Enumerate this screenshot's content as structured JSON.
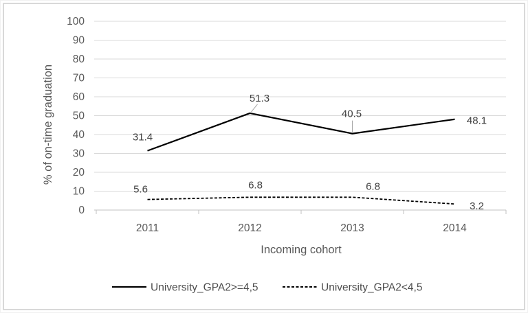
{
  "chart_data": {
    "type": "line",
    "title": "",
    "xlabel": "Incoming cohort",
    "ylabel": "% of on-time graduation",
    "categories": [
      "2011",
      "2012",
      "2013",
      "2014"
    ],
    "series": [
      {
        "name": "University_GPA2>=4,5",
        "values": [
          31.4,
          51.3,
          40.5,
          48.1
        ],
        "data_labels": [
          "31.4",
          "51.3",
          "40.5",
          "48.1"
        ],
        "line_style": "solid"
      },
      {
        "name": "University_GPA2<4,5",
        "values": [
          5.6,
          6.8,
          6.8,
          3.2
        ],
        "data_labels": [
          "5.6",
          "6.8",
          "6.8",
          "3.2"
        ],
        "line_style": "dashed"
      }
    ],
    "ylim": [
      0,
      100
    ],
    "ytick_step": 10,
    "grid": "horizontal",
    "legend_position": "bottom"
  },
  "colors": {
    "series_line": "#000000",
    "gridline": "#d9d9d9",
    "axis_line": "#c0c0c0",
    "tick_mark": "#c0c0c0",
    "axis_text": "#595959",
    "data_label_text": "#404040",
    "leader_line": "#a6a6a6",
    "legend_text": "#4d4d4d",
    "frame_border": "#d9d9d9",
    "background": "#ffffff"
  }
}
